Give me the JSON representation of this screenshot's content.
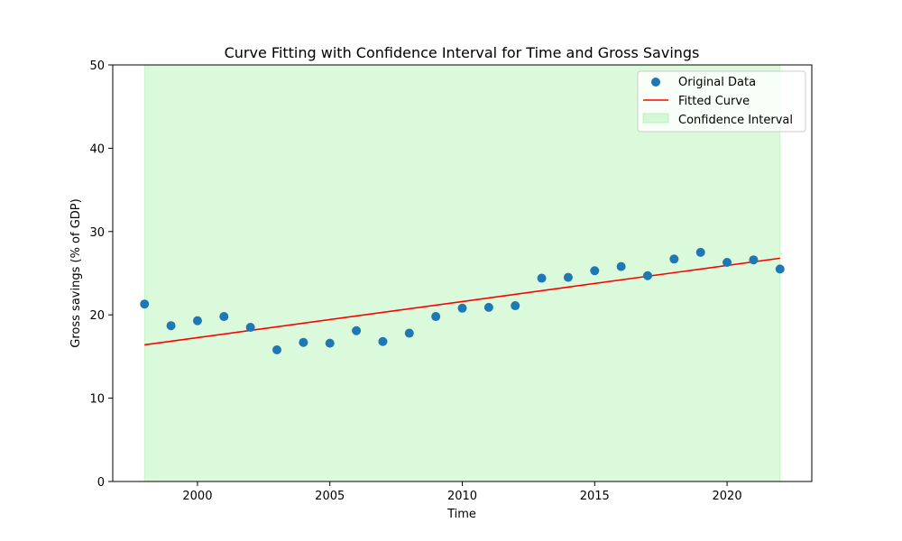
{
  "chart_data": {
    "type": "scatter",
    "title": "Curve Fitting with Confidence Interval for Time and Gross Savings",
    "xlabel": "Time",
    "ylabel": "Gross savings (% of GDP)",
    "xlim": [
      1996.8,
      2023.2
    ],
    "ylim": [
      0,
      50
    ],
    "x_ticks": [
      2000,
      2005,
      2010,
      2015,
      2020
    ],
    "y_ticks": [
      0,
      10,
      20,
      30,
      40,
      50
    ],
    "grid": false,
    "legend_position": "top-right",
    "series": [
      {
        "name": "Original Data",
        "kind": "scatter",
        "color": "#1f77b4",
        "x": [
          1998,
          1999,
          2000,
          2001,
          2002,
          2003,
          2004,
          2005,
          2006,
          2007,
          2008,
          2009,
          2010,
          2011,
          2012,
          2013,
          2014,
          2015,
          2016,
          2017,
          2018,
          2019,
          2020,
          2021,
          2022
        ],
        "y": [
          21.3,
          18.7,
          19.3,
          19.8,
          18.5,
          15.8,
          16.7,
          16.6,
          18.1,
          16.8,
          17.8,
          19.8,
          20.8,
          20.9,
          21.1,
          24.4,
          24.5,
          25.3,
          25.8,
          24.7,
          26.7,
          27.5,
          26.3,
          26.6,
          25.5
        ]
      },
      {
        "name": "Fitted Curve",
        "kind": "line",
        "color": "#ff0000",
        "x": [
          1998,
          2022
        ],
        "y": [
          16.4,
          26.8
        ]
      },
      {
        "name": "Confidence Interval",
        "kind": "band",
        "color": "#90ee90",
        "x": [
          1998,
          2022
        ],
        "y_lower": [
          0,
          0
        ],
        "y_upper": [
          50,
          50
        ]
      }
    ]
  }
}
